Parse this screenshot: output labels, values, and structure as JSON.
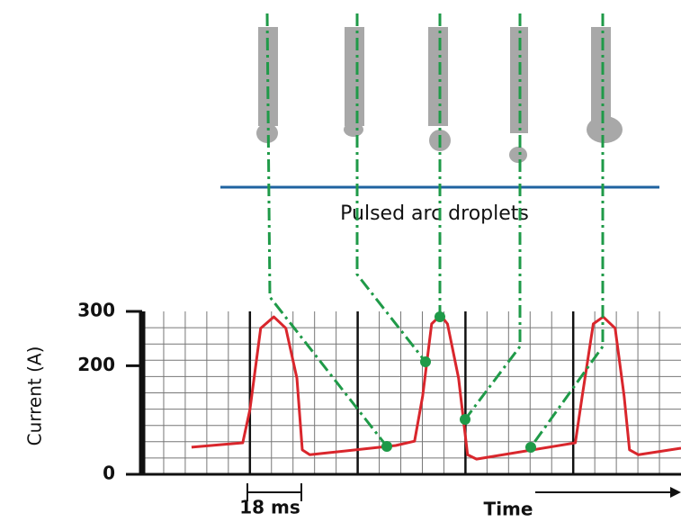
{
  "chart_data": {
    "type": "line",
    "y_label": "Current (A)",
    "x_label": "Time",
    "droplet_label": "Pulsed arc droplets",
    "period_label": "18 ms",
    "x": [
      16.5,
      33.6,
      36,
      39.6,
      44,
      48,
      51.7,
      53.5,
      56,
      84.7,
      91,
      93.7,
      96.7,
      99.7,
      102,
      105.7,
      108.7,
      111.7,
      144.7,
      147,
      150.7,
      154,
      158,
      161,
      162.8,
      165.8,
      180
    ],
    "series": [
      {
        "color": "#d9262c",
        "values": [
          50,
          58,
          119,
          269,
          290,
          269,
          177,
          45,
          36,
          53,
          61,
          144,
          277,
          293,
          277,
          177,
          36,
          28,
          58,
          144,
          277,
          290,
          269,
          144,
          45,
          36,
          48
        ]
      }
    ],
    "xlim": [
      0,
      180
    ],
    "xticks": [
      36,
      72,
      108,
      144
    ],
    "ylim": [
      0,
      300
    ],
    "yticks": [
      0,
      200,
      300
    ],
    "grid": true
  }
}
